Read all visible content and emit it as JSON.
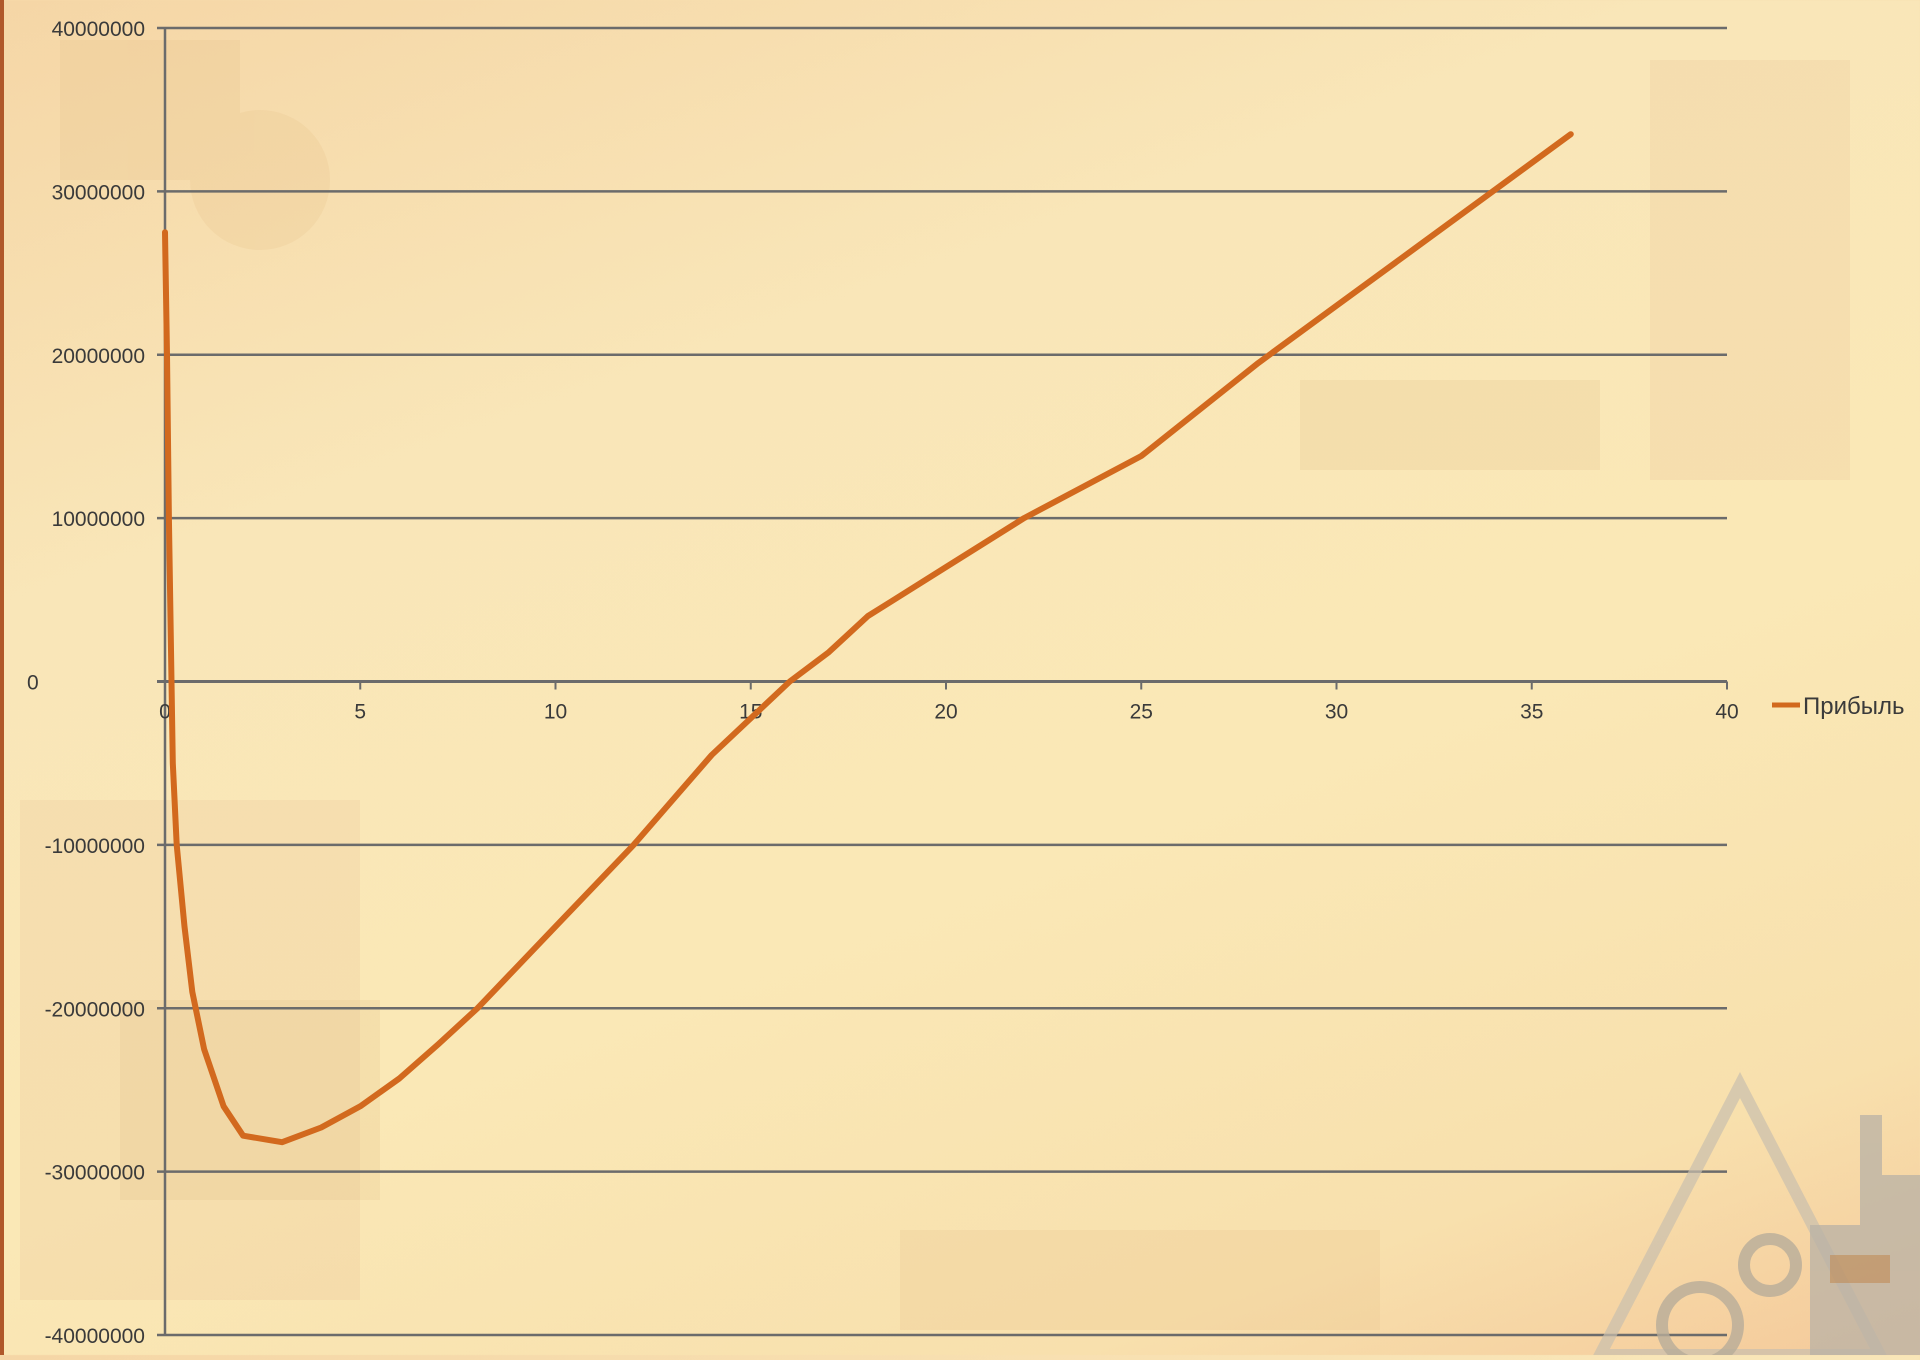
{
  "colors": {
    "series": "#d2691e",
    "grid": "#6b6b6b",
    "background": "#fae8b6"
  },
  "decoration": {
    "icon": "factory-gear-warning-icon"
  },
  "chart_data": {
    "type": "line",
    "title": "",
    "xlabel": "",
    "ylabel": "",
    "xlim": [
      0,
      40
    ],
    "ylim": [
      -40000000,
      40000000
    ],
    "x_ticks": [
      "0",
      "5",
      "10",
      "15",
      "20",
      "25",
      "30",
      "35",
      "40"
    ],
    "y_ticks": [
      "40000000",
      "30000000",
      "20000000",
      "10000000",
      "0",
      "-10000000",
      "-20000000",
      "-30000000",
      "-40000000"
    ],
    "grid": true,
    "legend_position": "right",
    "series": [
      {
        "name": "Прибыль",
        "points": [
          [
            0,
            27500000
          ],
          [
            0.05,
            20000000
          ],
          [
            0.1,
            10000000
          ],
          [
            0.2,
            -5000000
          ],
          [
            0.3,
            -10000000
          ],
          [
            0.5,
            -15000000
          ],
          [
            0.7,
            -19000000
          ],
          [
            1.0,
            -22500000
          ],
          [
            1.5,
            -26000000
          ],
          [
            2.0,
            -27800000
          ],
          [
            3.0,
            -28200000
          ],
          [
            4.0,
            -27300000
          ],
          [
            5.0,
            -26000000
          ],
          [
            6.0,
            -24300000
          ],
          [
            7.0,
            -22200000
          ],
          [
            8.0,
            -20000000
          ],
          [
            10.0,
            -15000000
          ],
          [
            12.0,
            -10000000
          ],
          [
            14.0,
            -4500000
          ],
          [
            16.0,
            0
          ],
          [
            17.0,
            1800000
          ],
          [
            18.0,
            4000000
          ],
          [
            20.0,
            7000000
          ],
          [
            22.0,
            10000000
          ],
          [
            25.0,
            13800000
          ],
          [
            28.0,
            19500000
          ],
          [
            30.0,
            23000000
          ],
          [
            32.0,
            26500000
          ],
          [
            34.0,
            30000000
          ],
          [
            36.0,
            33500000
          ]
        ]
      }
    ]
  }
}
